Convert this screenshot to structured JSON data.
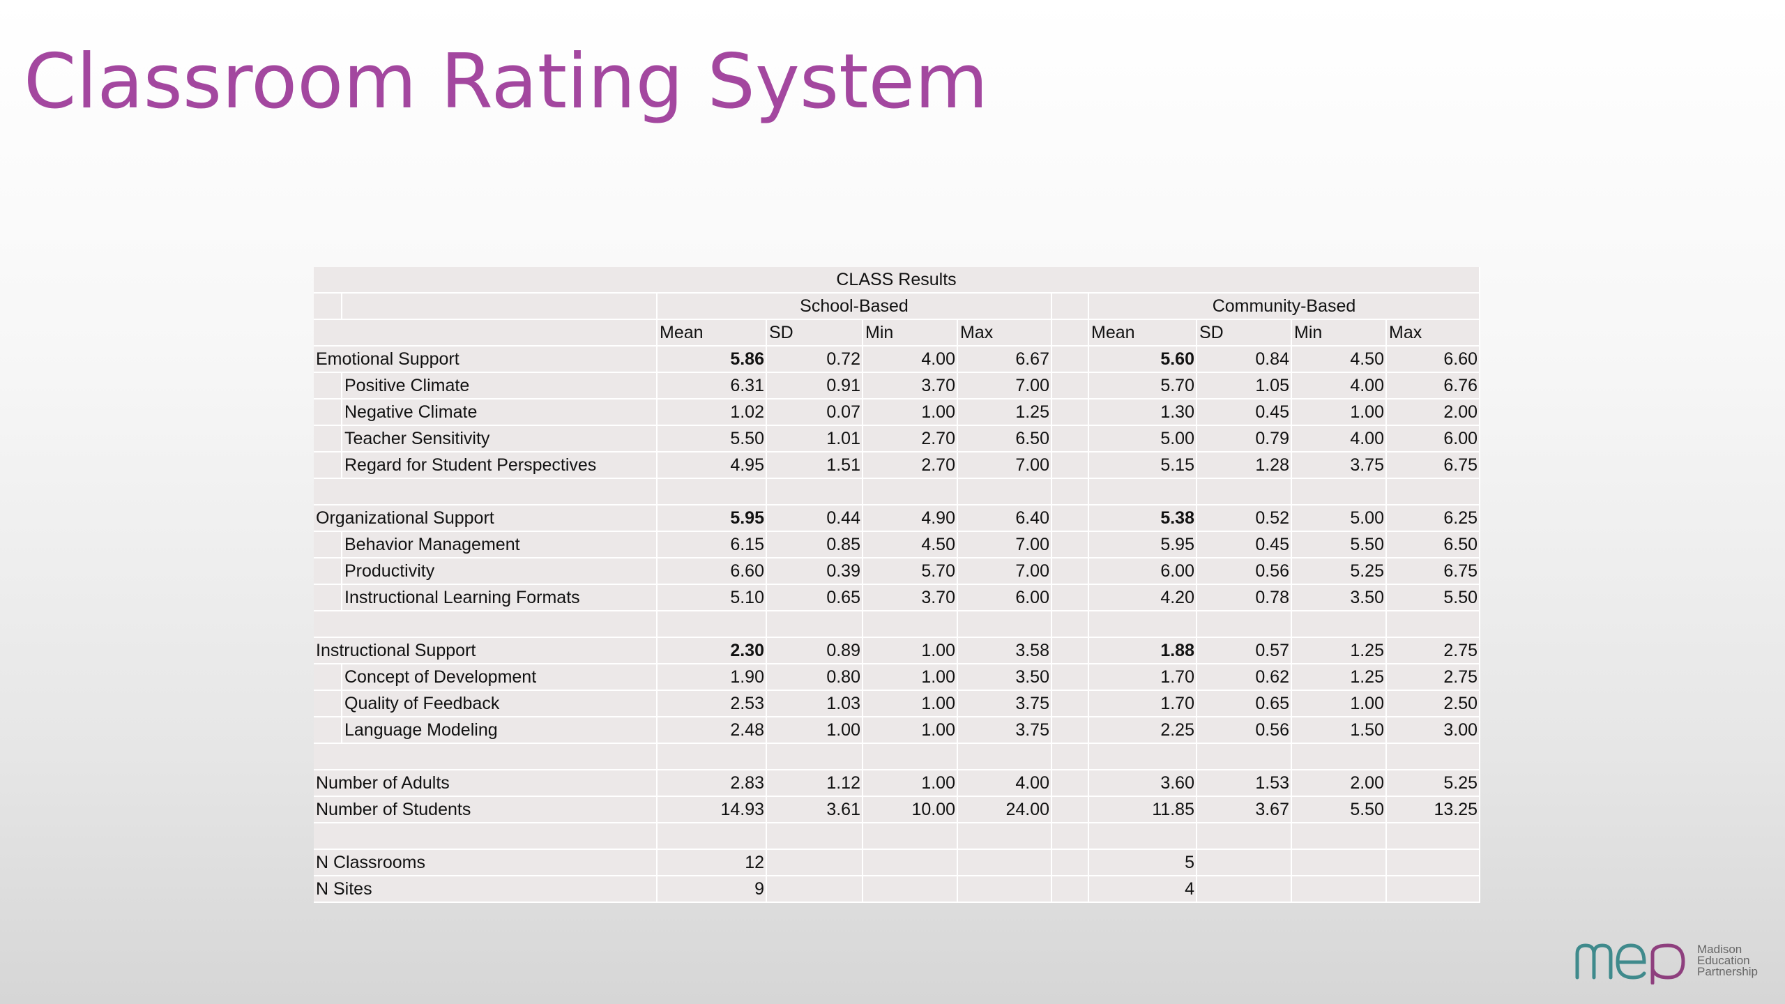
{
  "title": "Classroom Rating System",
  "table": {
    "caption": "CLASS Results",
    "groups": [
      "School-Based",
      "Community-Based"
    ],
    "columns": [
      "Mean",
      "SD",
      "Min",
      "Max"
    ],
    "rows": [
      {
        "label": "Emotional Support",
        "type": "section",
        "school": [
          "5.86",
          "0.72",
          "4.00",
          "6.67"
        ],
        "community": [
          "5.60",
          "0.84",
          "4.50",
          "6.60"
        ]
      },
      {
        "label": "Positive Climate",
        "type": "sub",
        "school": [
          "6.31",
          "0.91",
          "3.70",
          "7.00"
        ],
        "community": [
          "5.70",
          "1.05",
          "4.00",
          "6.76"
        ]
      },
      {
        "label": "Negative Climate",
        "type": "sub",
        "school": [
          "1.02",
          "0.07",
          "1.00",
          "1.25"
        ],
        "community": [
          "1.30",
          "0.45",
          "1.00",
          "2.00"
        ]
      },
      {
        "label": "Teacher Sensitivity",
        "type": "sub",
        "school": [
          "5.50",
          "1.01",
          "2.70",
          "6.50"
        ],
        "community": [
          "5.00",
          "0.79",
          "4.00",
          "6.00"
        ]
      },
      {
        "label": "Regard for Student Perspectives",
        "type": "sub",
        "school": [
          "4.95",
          "1.51",
          "2.70",
          "7.00"
        ],
        "community": [
          "5.15",
          "1.28",
          "3.75",
          "6.75"
        ]
      },
      {
        "label": "",
        "type": "blank",
        "school": [
          "",
          "",
          "",
          ""
        ],
        "community": [
          "",
          "",
          "",
          ""
        ]
      },
      {
        "label": "Organizational Support",
        "type": "section",
        "school": [
          "5.95",
          "0.44",
          "4.90",
          "6.40"
        ],
        "community": [
          "5.38",
          "0.52",
          "5.00",
          "6.25"
        ]
      },
      {
        "label": "Behavior Management",
        "type": "sub",
        "school": [
          "6.15",
          "0.85",
          "4.50",
          "7.00"
        ],
        "community": [
          "5.95",
          "0.45",
          "5.50",
          "6.50"
        ]
      },
      {
        "label": "Productivity",
        "type": "sub",
        "school": [
          "6.60",
          "0.39",
          "5.70",
          "7.00"
        ],
        "community": [
          "6.00",
          "0.56",
          "5.25",
          "6.75"
        ]
      },
      {
        "label": "Instructional Learning Formats",
        "type": "sub",
        "school": [
          "5.10",
          "0.65",
          "3.70",
          "6.00"
        ],
        "community": [
          "4.20",
          "0.78",
          "3.50",
          "5.50"
        ]
      },
      {
        "label": "",
        "type": "blank",
        "school": [
          "",
          "",
          "",
          ""
        ],
        "community": [
          "",
          "",
          "",
          ""
        ]
      },
      {
        "label": "Instructional Support",
        "type": "section",
        "school": [
          "2.30",
          "0.89",
          "1.00",
          "3.58"
        ],
        "community": [
          "1.88",
          "0.57",
          "1.25",
          "2.75"
        ]
      },
      {
        "label": "Concept of Development",
        "type": "sub",
        "school": [
          "1.90",
          "0.80",
          "1.00",
          "3.50"
        ],
        "community": [
          "1.70",
          "0.62",
          "1.25",
          "2.75"
        ]
      },
      {
        "label": "Quality of Feedback",
        "type": "sub",
        "school": [
          "2.53",
          "1.03",
          "1.00",
          "3.75"
        ],
        "community": [
          "1.70",
          "0.65",
          "1.00",
          "2.50"
        ]
      },
      {
        "label": "Language Modeling",
        "type": "sub",
        "school": [
          "2.48",
          "1.00",
          "1.00",
          "3.75"
        ],
        "community": [
          "2.25",
          "0.56",
          "1.50",
          "3.00"
        ]
      },
      {
        "label": "",
        "type": "blank",
        "school": [
          "",
          "",
          "",
          ""
        ],
        "community": [
          "",
          "",
          "",
          ""
        ]
      },
      {
        "label": "Number of Adults",
        "type": "plain",
        "school": [
          "2.83",
          "1.12",
          "1.00",
          "4.00"
        ],
        "community": [
          "3.60",
          "1.53",
          "2.00",
          "5.25"
        ]
      },
      {
        "label": "Number of Students",
        "type": "plain",
        "school": [
          "14.93",
          "3.61",
          "10.00",
          "24.00"
        ],
        "community": [
          "11.85",
          "3.67",
          "5.50",
          "13.25"
        ]
      },
      {
        "label": "",
        "type": "blank",
        "school": [
          "",
          "",
          "",
          ""
        ],
        "community": [
          "",
          "",
          "",
          ""
        ]
      },
      {
        "label": "N Classrooms",
        "type": "plain",
        "school": [
          "12",
          "",
          "",
          ""
        ],
        "community": [
          "5",
          "",
          "",
          ""
        ]
      },
      {
        "label": "N Sites",
        "type": "plain",
        "school": [
          "9",
          "",
          "",
          ""
        ],
        "community": [
          "4",
          "",
          "",
          ""
        ]
      }
    ]
  },
  "logo": {
    "mark": "mep",
    "text_lines": [
      "Madison",
      "Education",
      "Partnership"
    ],
    "colors": {
      "teal": "#3f8a8c",
      "purple": "#8e3f7e"
    }
  },
  "colors": {
    "title": "#a3479f",
    "table_bg": "#ece8e8",
    "grid": "#ffffff"
  }
}
